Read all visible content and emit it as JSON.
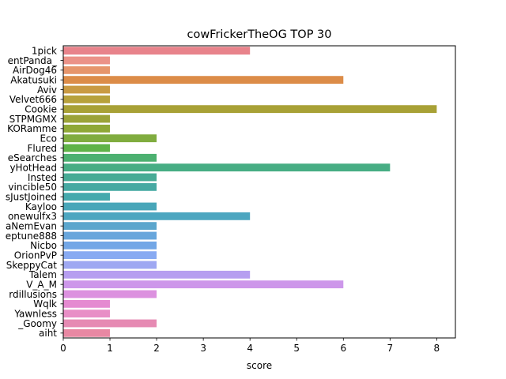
{
  "chart_data": {
    "type": "bar",
    "orientation": "horizontal",
    "title": "cowFrickerTheOG TOP 30",
    "xlabel": "score",
    "ylabel": "",
    "xlim": [
      0,
      8.4
    ],
    "xticks": [
      0,
      1,
      2,
      3,
      4,
      5,
      6,
      7,
      8
    ],
    "grid": false,
    "categories": [
      "1pick",
      "entPanda_",
      "AirDog46",
      "Akatusuki",
      "Aviv",
      "Velvet666",
      "Cookie",
      "STPMGMX",
      "KORamme",
      "Eco",
      "Flured",
      "eSearches",
      "yHotHead",
      "Insted",
      "vincible50",
      "sJustJoined",
      "Kayloo",
      "onewulfx3",
      "aNemEvan",
      "eptune888",
      "Nicbo",
      "OrionPvP",
      "SkeppyCat",
      "Talem",
      "V_A_M",
      "rdillusions",
      "Wqlk",
      "Yawnless",
      "_Goomy",
      "aiht"
    ],
    "values": [
      4,
      1,
      1,
      6,
      1,
      1,
      8,
      1,
      1,
      2,
      1,
      2,
      7,
      2,
      2,
      1,
      2,
      4,
      2,
      2,
      2,
      2,
      2,
      4,
      6,
      2,
      1,
      1,
      2,
      1
    ],
    "colors": [
      "#e8838b",
      "#eb9288",
      "#e6956b",
      "#dc8c48",
      "#c99a42",
      "#b7a13b",
      "#a8a136",
      "#9ba338",
      "#8fa836",
      "#80ac3f",
      "#5fb348",
      "#4cb070",
      "#47ad84",
      "#47ab95",
      "#46a9a2",
      "#45a9ad",
      "#48a6b9",
      "#4da6c0",
      "#5ba6cd",
      "#68a6dc",
      "#73a7e6",
      "#88aaf2",
      "#9fa8f2",
      "#b69ef0",
      "#cd97ea",
      "#dc91df",
      "#e58ad1",
      "#e88ec6",
      "#e68ab3",
      "#e888a3"
    ]
  }
}
